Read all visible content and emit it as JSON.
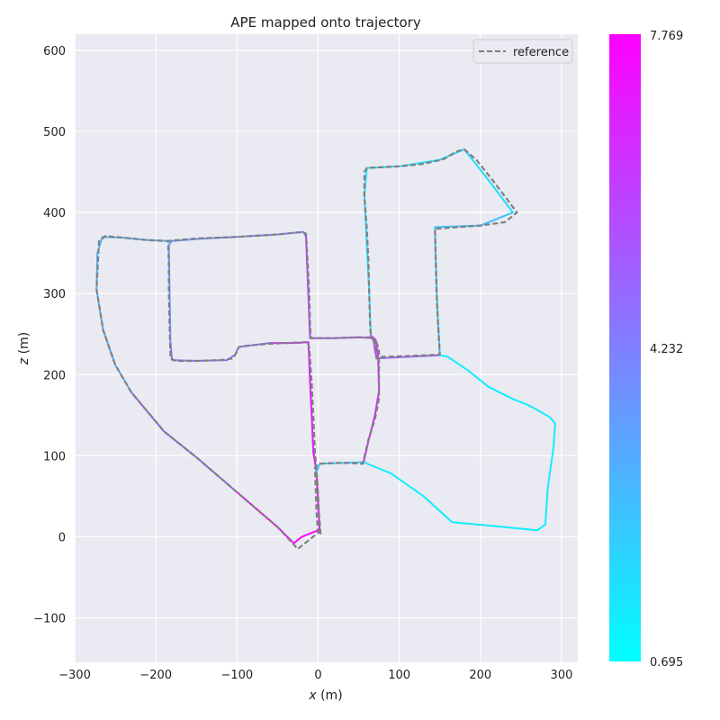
{
  "chart_data": {
    "type": "line",
    "title": "APE mapped onto trajectory",
    "xlabel_var": "x",
    "xlabel_unit": " (m)",
    "ylabel_var": "z",
    "ylabel_unit": " (m)",
    "xlim": [
      -300,
      320
    ],
    "ylim": [
      -155,
      620
    ],
    "x_ticks": [
      -300,
      -200,
      -100,
      0,
      100,
      200,
      300
    ],
    "y_ticks": [
      -100,
      0,
      100,
      200,
      300,
      400,
      500,
      600
    ],
    "x_tick_labels": [
      "−300",
      "−200",
      "−100",
      "0",
      "100",
      "200",
      "300"
    ],
    "y_tick_labels": [
      "−100",
      "0",
      "100",
      "200",
      "300",
      "400",
      "500",
      "600"
    ],
    "grid": true,
    "legend": {
      "position": "top-right",
      "entries": [
        "reference"
      ]
    },
    "colorbar": {
      "min": 0.695,
      "max": 7.769,
      "labels": [
        "7.769",
        "4.232",
        "0.695"
      ],
      "colors": [
        "#00ffff",
        "#ff00ff"
      ]
    },
    "series": [
      {
        "name": "reference",
        "style": "dashed",
        "color": "#808080",
        "points": [
          [
            3,
            3
          ],
          [
            1,
            30
          ],
          [
            -1,
            70
          ],
          [
            -4,
            105
          ],
          [
            -6,
            150
          ],
          [
            -8,
            190
          ],
          [
            -10,
            220
          ],
          [
            -11,
            233
          ],
          [
            -13,
            240
          ],
          [
            -40,
            239
          ],
          [
            -60,
            238
          ],
          [
            -85,
            236
          ],
          [
            -98,
            234
          ],
          [
            -100,
            228
          ],
          [
            -105,
            220
          ],
          [
            -120,
            218
          ],
          [
            -150,
            217
          ],
          [
            -175,
            217
          ],
          [
            -182,
            220
          ],
          [
            -183,
            260
          ],
          [
            -184,
            300
          ],
          [
            -184,
            340
          ],
          [
            -185,
            365
          ],
          [
            -150,
            368
          ],
          [
            -100,
            370
          ],
          [
            -50,
            373
          ],
          [
            -20,
            376
          ],
          [
            -15,
            374
          ],
          [
            -13,
            340
          ],
          [
            -11,
            300
          ],
          [
            -10,
            260
          ],
          [
            -9,
            245
          ],
          [
            20,
            245
          ],
          [
            50,
            246
          ],
          [
            65,
            246
          ],
          [
            70,
            240
          ],
          [
            72,
            220
          ],
          [
            78,
            222
          ],
          [
            110,
            223
          ],
          [
            135,
            224
          ],
          [
            150,
            225
          ],
          [
            148,
            260
          ],
          [
            146,
            300
          ],
          [
            145,
            340
          ],
          [
            144,
            380
          ],
          [
            200,
            384
          ],
          [
            230,
            388
          ],
          [
            245,
            400
          ],
          [
            215,
            440
          ],
          [
            195,
            465
          ],
          [
            180,
            478
          ],
          [
            170,
            475
          ],
          [
            155,
            466
          ],
          [
            130,
            460
          ],
          [
            100,
            457
          ],
          [
            60,
            455
          ],
          [
            57,
            450
          ],
          [
            57,
            420
          ],
          [
            60,
            380
          ],
          [
            62,
            340
          ],
          [
            63,
            300
          ],
          [
            64,
            260
          ],
          [
            65,
            248
          ],
          [
            67,
            244
          ],
          [
            71,
            243
          ],
          [
            75,
            230
          ],
          [
            75,
            200
          ],
          [
            75,
            170
          ],
          [
            70,
            145
          ],
          [
            62,
            120
          ],
          [
            55,
            90
          ],
          [
            40,
            91
          ],
          [
            20,
            91
          ],
          [
            0,
            90
          ],
          [
            -4,
            85
          ],
          [
            -3,
            60
          ],
          [
            -2,
            30
          ],
          [
            0,
            5
          ],
          [
            -25,
            -15
          ],
          [
            -50,
            12
          ],
          [
            -100,
            55
          ],
          [
            -150,
            98
          ],
          [
            -190,
            130
          ],
          [
            -230,
            178
          ],
          [
            -250,
            212
          ],
          [
            -265,
            255
          ],
          [
            -273,
            305
          ],
          [
            -270,
            365
          ],
          [
            -262,
            371
          ],
          [
            -240,
            369
          ],
          [
            -210,
            366
          ],
          [
            -185,
            365
          ]
        ]
      }
    ],
    "trajectory_segments": [
      {
        "v": 7.4,
        "points": [
          [
            2,
            5
          ],
          [
            0,
            40
          ],
          [
            -2,
            80
          ],
          [
            -6,
            105
          ]
        ]
      },
      {
        "v": 6.8,
        "points": [
          [
            -6,
            105
          ],
          [
            -8,
            150
          ],
          [
            -10,
            190
          ],
          [
            -12,
            240
          ],
          [
            -30,
            239
          ],
          [
            -60,
            239
          ]
        ]
      },
      {
        "v": 4.6,
        "points": [
          [
            -60,
            239
          ],
          [
            -98,
            234
          ],
          [
            -102,
            225
          ],
          [
            -112,
            218
          ],
          [
            -150,
            217
          ],
          [
            -180,
            218
          ],
          [
            -182,
            240
          ]
        ]
      },
      {
        "v": 3.4,
        "points": [
          [
            -182,
            240
          ],
          [
            -183,
            300
          ],
          [
            -184,
            360
          ],
          [
            -180,
            365
          ],
          [
            -140,
            368
          ]
        ]
      },
      {
        "v": 4.0,
        "points": [
          [
            -140,
            368
          ],
          [
            -100,
            370
          ],
          [
            -50,
            373
          ],
          [
            -18,
            376
          ],
          [
            -15,
            370
          ]
        ]
      },
      {
        "v": 5.8,
        "points": [
          [
            -15,
            370
          ],
          [
            -13,
            320
          ],
          [
            -11,
            270
          ],
          [
            -10,
            245
          ],
          [
            20,
            245
          ],
          [
            50,
            246
          ],
          [
            68,
            245
          ],
          [
            70,
            230
          ]
        ]
      },
      {
        "v": 5.0,
        "points": [
          [
            70,
            230
          ],
          [
            72,
            220
          ],
          [
            110,
            222
          ],
          [
            150,
            224
          ]
        ]
      },
      {
        "v": 2.4,
        "points": [
          [
            150,
            224
          ],
          [
            147,
            280
          ],
          [
            145,
            340
          ],
          [
            144,
            382
          ],
          [
            200,
            384
          ],
          [
            240,
            400
          ]
        ]
      },
      {
        "v": 1.6,
        "points": [
          [
            240,
            400
          ],
          [
            210,
            440
          ],
          [
            180,
            478
          ],
          [
            150,
            465
          ],
          [
            100,
            457
          ],
          [
            60,
            455
          ],
          [
            57,
            420
          ],
          [
            60,
            360
          ],
          [
            63,
            300
          ],
          [
            65,
            248
          ]
        ]
      },
      {
        "v": 6.6,
        "points": [
          [
            65,
            248
          ],
          [
            71,
            243
          ],
          [
            74,
            220
          ],
          [
            75,
            180
          ],
          [
            70,
            150
          ],
          [
            62,
            118
          ],
          [
            56,
            92
          ]
        ]
      },
      {
        "v": 2.2,
        "points": [
          [
            56,
            92
          ],
          [
            30,
            91
          ],
          [
            2,
            90
          ],
          [
            -2,
            80
          ]
        ]
      },
      {
        "v": 1.2,
        "points": [
          [
            56,
            92
          ],
          [
            90,
            78
          ],
          [
            130,
            50
          ],
          [
            165,
            18
          ],
          [
            220,
            13
          ],
          [
            270,
            8
          ],
          [
            280,
            15
          ],
          [
            283,
            60
          ],
          [
            290,
            110
          ],
          [
            292,
            140
          ],
          [
            285,
            148
          ],
          [
            260,
            162
          ],
          [
            240,
            170
          ],
          [
            210,
            185
          ],
          [
            185,
            205
          ],
          [
            160,
            222
          ],
          [
            150,
            224
          ]
        ]
      },
      {
        "v": 7.6,
        "points": [
          [
            0,
            8
          ],
          [
            -20,
            0
          ],
          [
            -30,
            -8
          ],
          [
            -50,
            12
          ],
          [
            -100,
            55
          ]
        ]
      },
      {
        "v": 5.2,
        "points": [
          [
            -100,
            55
          ],
          [
            -150,
            98
          ],
          [
            -190,
            130
          ],
          [
            -230,
            178
          ]
        ]
      },
      {
        "v": 2.8,
        "points": [
          [
            -230,
            178
          ],
          [
            -250,
            212
          ],
          [
            -265,
            255
          ],
          [
            -273,
            305
          ],
          [
            -272,
            350
          ],
          [
            -266,
            370
          ],
          [
            -240,
            369
          ],
          [
            -210,
            366
          ],
          [
            -185,
            365
          ]
        ]
      }
    ]
  }
}
